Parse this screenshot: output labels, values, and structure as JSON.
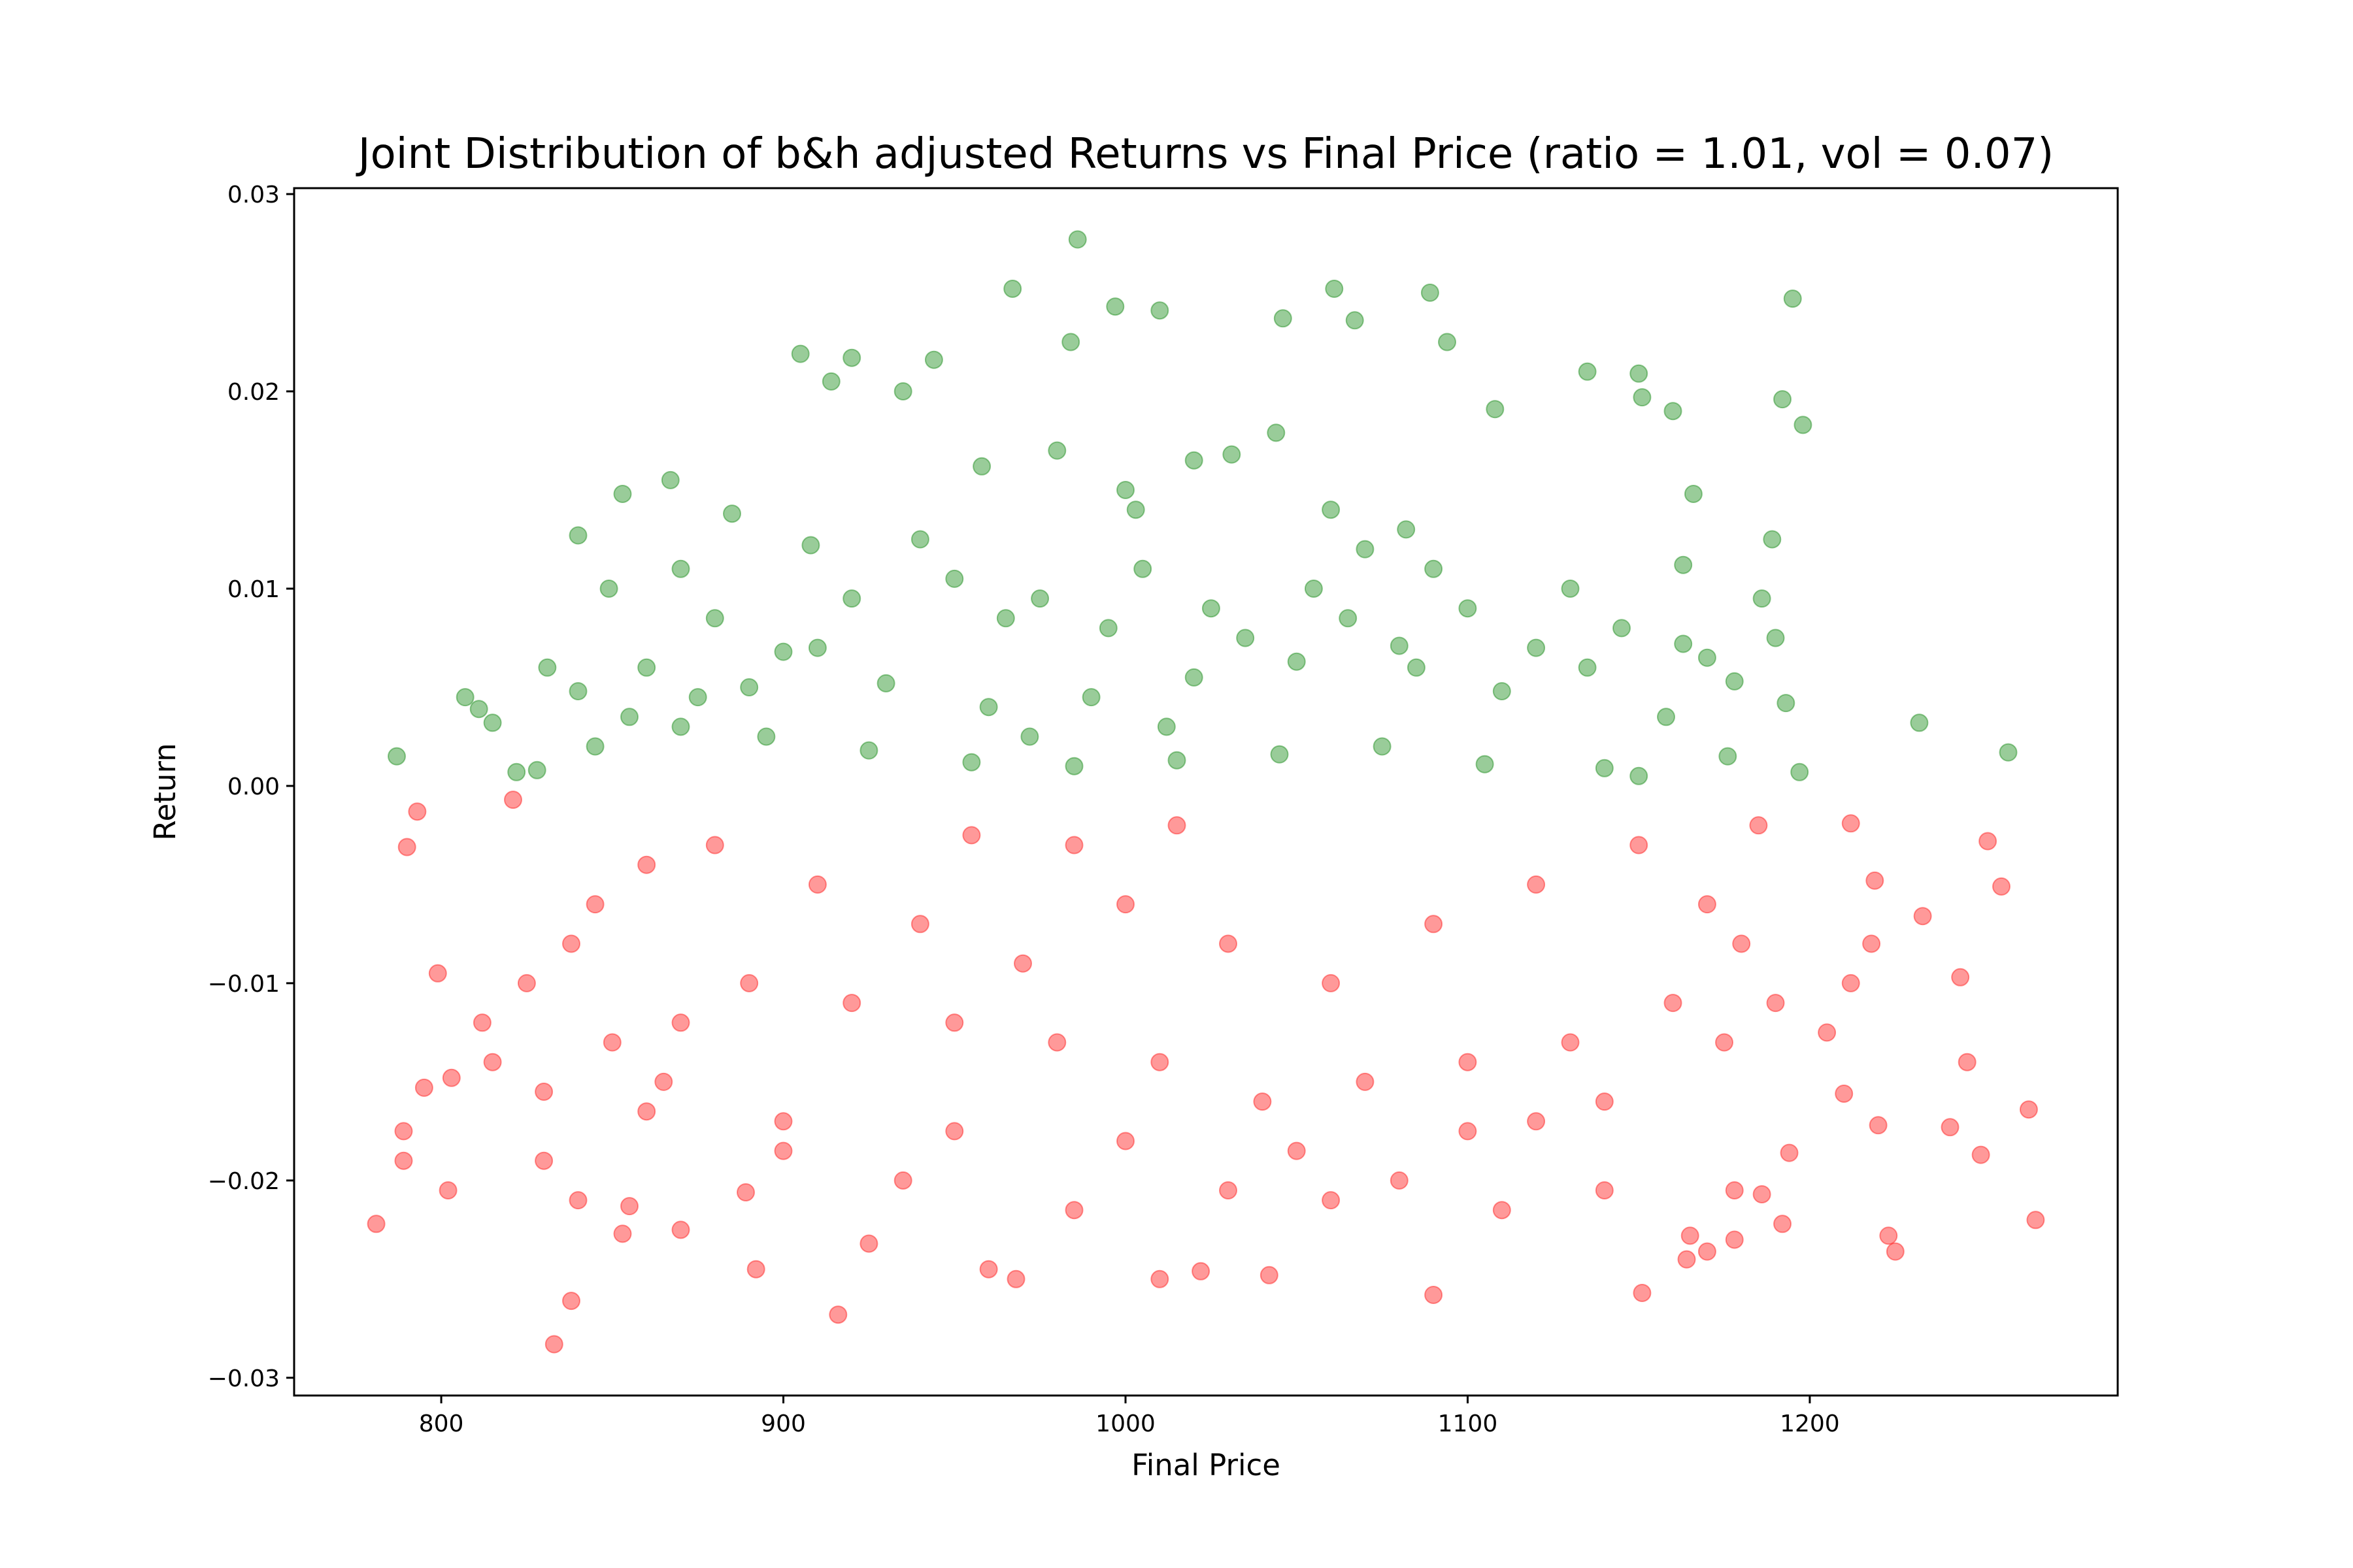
{
  "chart_data": {
    "type": "scatter",
    "title": "Joint Distribution of b&h adjusted Returns vs Final Price (ratio = 1.01, vol = 0.07)",
    "xlabel": "Final Price",
    "ylabel": "Return",
    "xlim": [
      757,
      1290
    ],
    "ylim": [
      -0.0309,
      0.0303
    ],
    "xticks": [
      800,
      900,
      1000,
      1100,
      1200
    ],
    "xtick_labels": [
      "800",
      "900",
      "1000",
      "1100",
      "1200"
    ],
    "yticks": [
      -0.03,
      -0.02,
      -0.01,
      0.0,
      0.01,
      0.02,
      0.03
    ],
    "ytick_labels": [
      "−0.03",
      "−0.02",
      "−0.01",
      "0.00",
      "0.01",
      "0.02",
      "0.03"
    ],
    "grid": false,
    "legend": "none",
    "series": [
      {
        "color": "#008000",
        "alpha": 0.4,
        "condition": "return >= 0",
        "points": [
          [
            986,
            0.0277
          ],
          [
            967,
            0.0252
          ],
          [
            1061,
            0.0252
          ],
          [
            1089,
            0.025
          ],
          [
            1195,
            0.0247
          ],
          [
            997,
            0.0243
          ],
          [
            1010,
            0.0241
          ],
          [
            1046,
            0.0237
          ],
          [
            1067,
            0.0236
          ],
          [
            1094,
            0.0225
          ],
          [
            984,
            0.0225
          ],
          [
            905,
            0.0219
          ],
          [
            920,
            0.0217
          ],
          [
            944,
            0.0216
          ],
          [
            1135,
            0.021
          ],
          [
            1150,
            0.0209
          ],
          [
            914,
            0.0205
          ],
          [
            1192,
            0.0196
          ],
          [
            1151,
            0.0197
          ],
          [
            1108,
            0.0191
          ],
          [
            1160,
            0.019
          ],
          [
            1198,
            0.0183
          ],
          [
            1031,
            0.0168
          ],
          [
            1044,
            0.0179
          ],
          [
            935,
            0.02
          ],
          [
            867,
            0.0155
          ],
          [
            853,
            0.0148
          ],
          [
            1166,
            0.0148
          ],
          [
            885,
            0.0138
          ],
          [
            840,
            0.0127
          ],
          [
            1189,
            0.0125
          ],
          [
            1082,
            0.013
          ],
          [
            1003,
            0.014
          ],
          [
            958,
            0.0162
          ],
          [
            908,
            0.0122
          ],
          [
            870,
            0.011
          ],
          [
            849,
            0.01
          ],
          [
            1163,
            0.0112
          ],
          [
            1186,
            0.0095
          ],
          [
            1190,
            0.0075
          ],
          [
            1163,
            0.0072
          ],
          [
            1178,
            0.0053
          ],
          [
            1193,
            0.0042
          ],
          [
            1232,
            0.0032
          ],
          [
            1258,
            0.0017
          ],
          [
            1197,
            0.0007
          ],
          [
            1176,
            0.0015
          ],
          [
            1158,
            0.0035
          ],
          [
            1135,
            0.006
          ],
          [
            1110,
            0.0048
          ],
          [
            1080,
            0.0071
          ],
          [
            1050,
            0.0063
          ],
          [
            1020,
            0.0055
          ],
          [
            990,
            0.0045
          ],
          [
            960,
            0.004
          ],
          [
            930,
            0.0052
          ],
          [
            900,
            0.0068
          ],
          [
            880,
            0.0085
          ],
          [
            860,
            0.006
          ],
          [
            840,
            0.0048
          ],
          [
            831,
            0.006
          ],
          [
            807,
            0.0045
          ],
          [
            811,
            0.0039
          ],
          [
            815,
            0.0032
          ],
          [
            787,
            0.0015
          ],
          [
            828,
            0.0008
          ],
          [
            822,
            0.0007
          ],
          [
            845,
            0.002
          ],
          [
            870,
            0.003
          ],
          [
            895,
            0.0025
          ],
          [
            925,
            0.0018
          ],
          [
            955,
            0.0012
          ],
          [
            985,
            0.001
          ],
          [
            1015,
            0.0013
          ],
          [
            1045,
            0.0016
          ],
          [
            1075,
            0.002
          ],
          [
            1105,
            0.0011
          ],
          [
            1140,
            0.0009
          ],
          [
            1150,
            0.0005
          ],
          [
            965,
            0.0085
          ],
          [
            975,
            0.0095
          ],
          [
            995,
            0.008
          ],
          [
            1005,
            0.011
          ],
          [
            1025,
            0.009
          ],
          [
            1035,
            0.0075
          ],
          [
            1055,
            0.01
          ],
          [
            1065,
            0.0085
          ],
          [
            1085,
            0.006
          ],
          [
            1100,
            0.009
          ],
          [
            1120,
            0.007
          ],
          [
            950,
            0.0105
          ],
          [
            940,
            0.0125
          ],
          [
            920,
            0.0095
          ],
          [
            910,
            0.007
          ],
          [
            890,
            0.005
          ],
          [
            1000,
            0.015
          ],
          [
            1020,
            0.0165
          ],
          [
            980,
            0.017
          ],
          [
            1060,
            0.014
          ],
          [
            1070,
            0.012
          ],
          [
            1090,
            0.011
          ],
          [
            1130,
            0.01
          ],
          [
            1145,
            0.008
          ],
          [
            1170,
            0.0065
          ],
          [
            875,
            0.0045
          ],
          [
            855,
            0.0035
          ],
          [
            1012,
            0.003
          ],
          [
            972,
            0.0025
          ]
        ]
      },
      {
        "color": "#ff0000",
        "alpha": 0.4,
        "condition": "return < 0",
        "points": [
          [
            916,
            -0.0268
          ],
          [
            833,
            -0.0283
          ],
          [
            838,
            -0.0261
          ],
          [
            781,
            -0.0222
          ],
          [
            789,
            -0.019
          ],
          [
            789,
            -0.0175
          ],
          [
            802,
            -0.0205
          ],
          [
            795,
            -0.0153
          ],
          [
            803,
            -0.0148
          ],
          [
            799,
            -0.0095
          ],
          [
            790,
            -0.0031
          ],
          [
            793,
            -0.0013
          ],
          [
            821,
            -0.0007
          ],
          [
            1090,
            -0.0258
          ],
          [
            1151,
            -0.0257
          ],
          [
            1266,
            -0.022
          ],
          [
            1264,
            -0.0164
          ],
          [
            1250,
            -0.0187
          ],
          [
            1256,
            -0.0051
          ],
          [
            1252,
            -0.0028
          ],
          [
            1233,
            -0.0066
          ],
          [
            1212,
            -0.0019
          ],
          [
            1225,
            -0.0236
          ],
          [
            1223,
            -0.0228
          ],
          [
            1220,
            -0.0172
          ],
          [
            1241,
            -0.0173
          ],
          [
            1244,
            -0.0097
          ],
          [
            1246,
            -0.014
          ],
          [
            1210,
            -0.0156
          ],
          [
            1205,
            -0.0125
          ],
          [
            1212,
            -0.01
          ],
          [
            1218,
            -0.008
          ],
          [
            1219,
            -0.0048
          ],
          [
            968,
            -0.025
          ],
          [
            1010,
            -0.025
          ],
          [
            1022,
            -0.0246
          ],
          [
            1042,
            -0.0248
          ],
          [
            892,
            -0.0245
          ],
          [
            925,
            -0.0232
          ],
          [
            960,
            -0.0245
          ],
          [
            1164,
            -0.024
          ],
          [
            1170,
            -0.0236
          ],
          [
            1178,
            -0.023
          ],
          [
            1192,
            -0.0222
          ],
          [
            1194,
            -0.0186
          ],
          [
            1186,
            -0.0207
          ],
          [
            1178,
            -0.0205
          ],
          [
            1165,
            -0.0228
          ],
          [
            830,
            -0.019
          ],
          [
            840,
            -0.021
          ],
          [
            855,
            -0.0213
          ],
          [
            853,
            -0.0227
          ],
          [
            870,
            -0.0225
          ],
          [
            889,
            -0.0206
          ],
          [
            900,
            -0.0185
          ],
          [
            935,
            -0.02
          ],
          [
            985,
            -0.0215
          ],
          [
            1030,
            -0.0205
          ],
          [
            1060,
            -0.021
          ],
          [
            1080,
            -0.02
          ],
          [
            1110,
            -0.0215
          ],
          [
            1140,
            -0.0205
          ],
          [
            1100,
            -0.0175
          ],
          [
            1050,
            -0.0185
          ],
          [
            1000,
            -0.018
          ],
          [
            950,
            -0.0175
          ],
          [
            900,
            -0.017
          ],
          [
            860,
            -0.0165
          ],
          [
            830,
            -0.0155
          ],
          [
            815,
            -0.014
          ],
          [
            812,
            -0.012
          ],
          [
            825,
            -0.01
          ],
          [
            838,
            -0.008
          ],
          [
            845,
            -0.006
          ],
          [
            860,
            -0.004
          ],
          [
            880,
            -0.003
          ],
          [
            910,
            -0.005
          ],
          [
            940,
            -0.007
          ],
          [
            970,
            -0.009
          ],
          [
            1000,
            -0.006
          ],
          [
            1030,
            -0.008
          ],
          [
            1060,
            -0.01
          ],
          [
            1090,
            -0.007
          ],
          [
            1120,
            -0.005
          ],
          [
            1150,
            -0.003
          ],
          [
            1170,
            -0.006
          ],
          [
            1185,
            -0.002
          ],
          [
            1180,
            -0.008
          ],
          [
            1160,
            -0.011
          ],
          [
            1130,
            -0.013
          ],
          [
            1100,
            -0.014
          ],
          [
            1070,
            -0.015
          ],
          [
            1040,
            -0.016
          ],
          [
            1010,
            -0.014
          ],
          [
            980,
            -0.013
          ],
          [
            950,
            -0.012
          ],
          [
            920,
            -0.011
          ],
          [
            890,
            -0.01
          ],
          [
            870,
            -0.012
          ],
          [
            850,
            -0.013
          ],
          [
            865,
            -0.015
          ],
          [
            1190,
            -0.011
          ],
          [
            1175,
            -0.013
          ],
          [
            1140,
            -0.016
          ],
          [
            1120,
            -0.017
          ],
          [
            1015,
            -0.002
          ],
          [
            985,
            -0.003
          ],
          [
            955,
            -0.0025
          ]
        ]
      }
    ]
  }
}
